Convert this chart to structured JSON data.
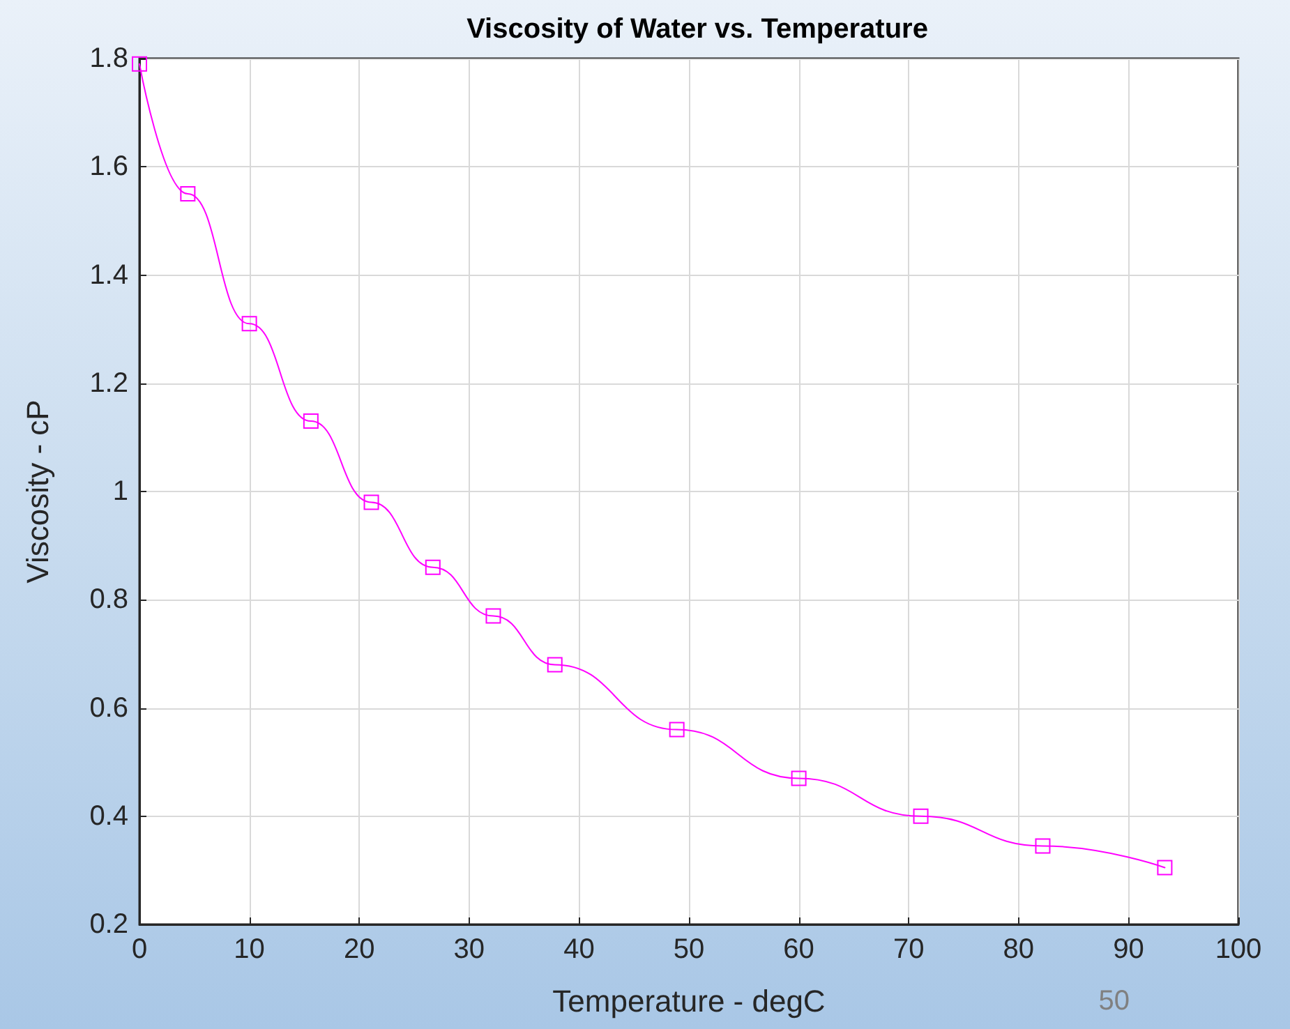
{
  "chart_data": {
    "type": "line",
    "title": "Viscosity of Water vs. Temperature",
    "xlabel": "Temperature - degC",
    "ylabel": "Viscosity - cP",
    "x": [
      0,
      4.4,
      10,
      15.6,
      21.1,
      26.7,
      32.2,
      37.8,
      48.9,
      60,
      71.1,
      82.2,
      93.3
    ],
    "series": [
      {
        "color": "#ff00ff",
        "values": [
          1.79,
          1.55,
          1.31,
          1.13,
          0.98,
          0.86,
          0.77,
          0.68,
          0.56,
          0.47,
          0.4,
          0.345,
          0.305
        ]
      }
    ],
    "xlim": [
      0,
      100
    ],
    "xticks": [
      0,
      10,
      20,
      30,
      40,
      50,
      60,
      70,
      80,
      90,
      100
    ],
    "ylim": [
      0.2,
      1.8
    ],
    "yticks": [
      0.2,
      0.4,
      0.6,
      0.8,
      1,
      1.2,
      1.4,
      1.6,
      1.8
    ],
    "grid": true,
    "marker": "square",
    "line_style": "solid",
    "annotations": [
      "50"
    ]
  }
}
